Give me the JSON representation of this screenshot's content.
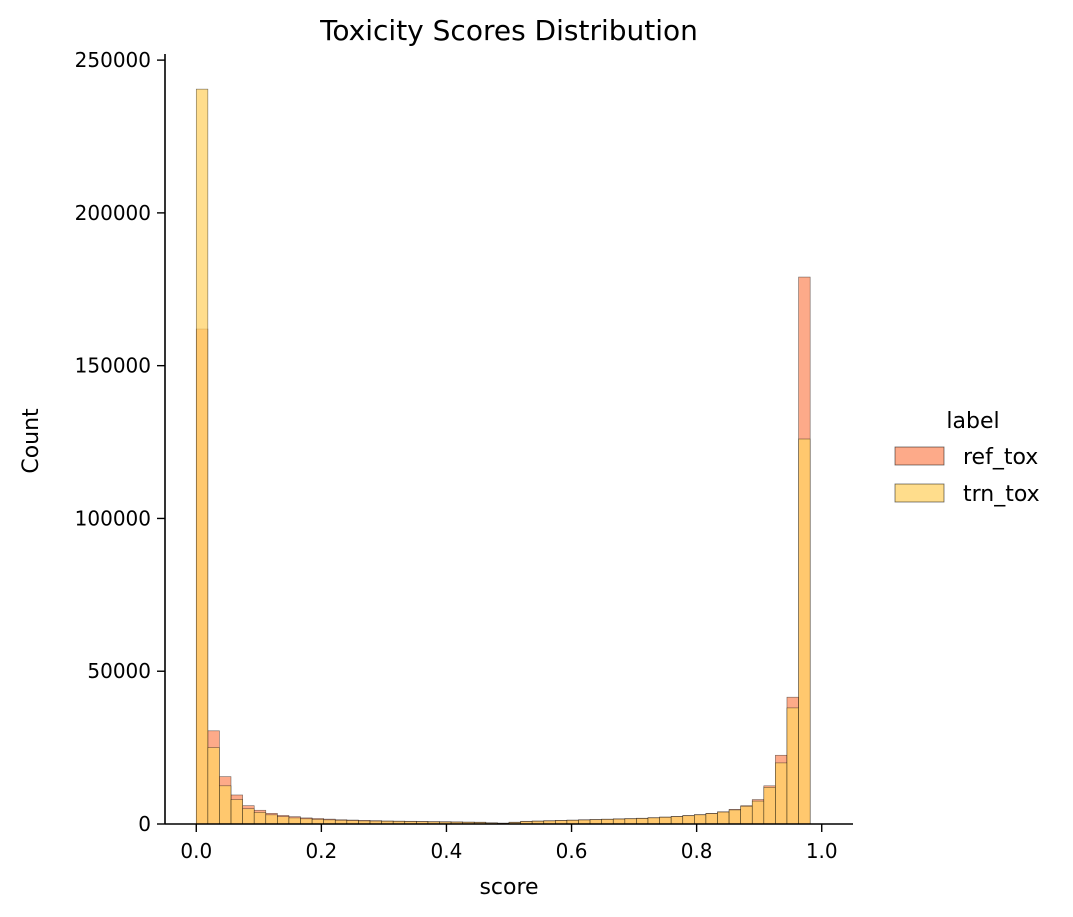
{
  "chart_data": {
    "type": "bar",
    "title": "Toxicity Scores Distribution",
    "xlabel": "score",
    "ylabel": "Count",
    "xlim": [
      -0.05,
      1.05
    ],
    "ylim": [
      0,
      252000
    ],
    "xticks": [
      0.0,
      0.2,
      0.4,
      0.6,
      0.8,
      1.0
    ],
    "xtick_labels": [
      "0.0",
      "0.2",
      "0.4",
      "0.6",
      "0.8",
      "1.0"
    ],
    "yticks": [
      0,
      50000,
      100000,
      150000,
      200000,
      250000
    ],
    "ytick_labels": [
      "0",
      "50000",
      "100000",
      "150000",
      "200000",
      "250000"
    ],
    "bin_width": 0.01852,
    "bin_starts": [
      0.0,
      0.0185,
      0.037,
      0.0556,
      0.0741,
      0.0926,
      0.1111,
      0.1296,
      0.1481,
      0.1667,
      0.1852,
      0.2037,
      0.2222,
      0.2407,
      0.2593,
      0.2778,
      0.2963,
      0.3148,
      0.3333,
      0.3519,
      0.3704,
      0.3889,
      0.4074,
      0.4259,
      0.4444,
      0.463,
      0.4815,
      0.5,
      0.5185,
      0.537,
      0.5556,
      0.5741,
      0.5926,
      0.6111,
      0.6296,
      0.6481,
      0.6667,
      0.6852,
      0.7037,
      0.7222,
      0.7407,
      0.7593,
      0.7778,
      0.7963,
      0.8148,
      0.8333,
      0.8519,
      0.8704,
      0.8889,
      0.9074,
      0.9259,
      0.9444,
      0.963,
      0.9815
    ],
    "legend": {
      "title": "label",
      "position": "right",
      "bbox_outside": true
    },
    "series": [
      {
        "name": "ref_tox",
        "color": "#fc8d62",
        "alpha": 0.75,
        "values": [
          162000,
          30500,
          15500,
          9500,
          6000,
          4500,
          3500,
          2800,
          2400,
          2000,
          1800,
          1600,
          1400,
          1300,
          1200,
          1100,
          1000,
          950,
          900,
          850,
          800,
          750,
          700,
          650,
          600,
          400,
          300,
          600,
          900,
          1000,
          1100,
          1200,
          1300,
          1400,
          1500,
          1600,
          1700,
          1800,
          1900,
          2100,
          2300,
          2500,
          2800,
          3100,
          3500,
          4000,
          4800,
          6000,
          8000,
          12500,
          22500,
          41500,
          179000,
          0
        ]
      },
      {
        "name": "trn_tox",
        "color": "#ffd166",
        "alpha": 0.75,
        "values": [
          240500,
          25000,
          12500,
          8000,
          5000,
          3800,
          3000,
          2400,
          2000,
          1700,
          1500,
          1350,
          1200,
          1100,
          1000,
          950,
          900,
          850,
          800,
          750,
          700,
          650,
          600,
          550,
          500,
          350,
          250,
          500,
          800,
          900,
          1000,
          1100,
          1200,
          1300,
          1400,
          1500,
          1600,
          1700,
          1800,
          2000,
          2200,
          2400,
          2700,
          3000,
          3400,
          3900,
          4600,
          5800,
          7500,
          12000,
          20000,
          38000,
          126000,
          0
        ]
      }
    ]
  }
}
